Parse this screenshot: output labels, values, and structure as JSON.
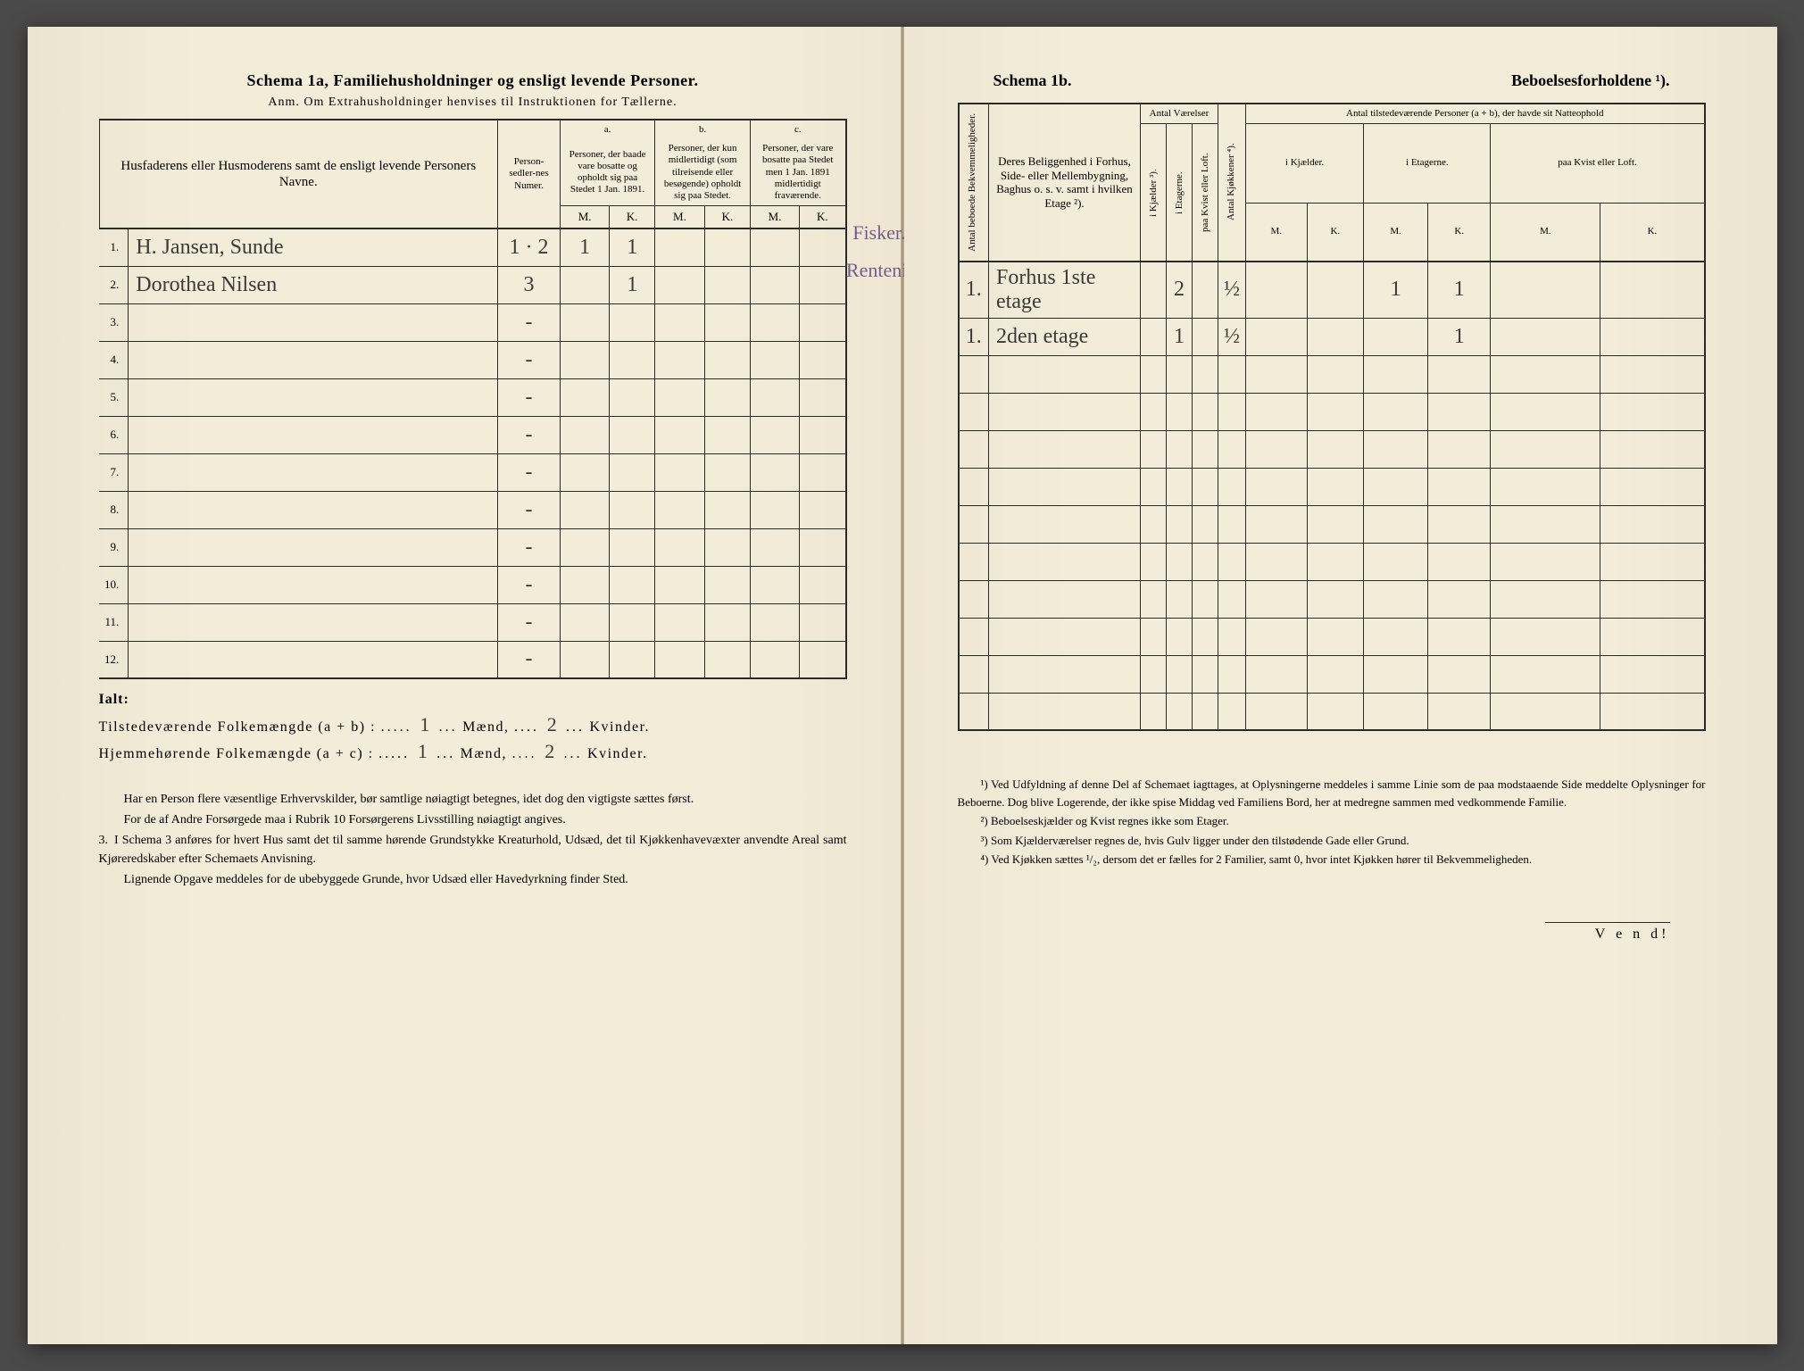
{
  "left": {
    "title": "Schema 1a,   Familiehusholdninger og ensligt levende Personer.",
    "anm": "Anm.  Om Extrahusholdninger henvises til Instruktionen for Tællerne.",
    "col_name": "Husfaderens eller Husmoderens samt de ensligt levende Personers Navne.",
    "col_numer": "Person-sedler-nes Numer.",
    "col_a": "a.",
    "col_a_text": "Personer, der baade vare bosatte og opholdt sig paa Stedet 1 Jan. 1891.",
    "col_b": "b.",
    "col_b_text": "Personer, der kun midlertidigt (som tilreisende eller besøgende) opholdt sig paa Stedet.",
    "col_c": "c.",
    "col_c_text": "Personer, der vare bosatte paa Stedet men 1 Jan. 1891 midlertidigt fraværende.",
    "M": "M.",
    "K": "K.",
    "rows": [
      {
        "n": "1.",
        "name": "H. Jansen, Sunde",
        "numer": "1 · 2",
        "aM": "1",
        "aK": "1",
        "note": "Fisker."
      },
      {
        "n": "2.",
        "name": "Dorothea Nilsen",
        "numer": "3",
        "aM": "",
        "aK": "1",
        "note": "Rentenist."
      },
      {
        "n": "3."
      },
      {
        "n": "4."
      },
      {
        "n": "5."
      },
      {
        "n": "6."
      },
      {
        "n": "7."
      },
      {
        "n": "8."
      },
      {
        "n": "9."
      },
      {
        "n": "10."
      },
      {
        "n": "11."
      },
      {
        "n": "12."
      }
    ],
    "ialt": "Ialt:",
    "tot1_label": "Tilstedeværende Folkemængde (a + b) :",
    "tot1_m": "1",
    "tot1_k": "2",
    "tot2_label": "Hjemmehørende Folkemængde (a + c) :",
    "tot2_m": "1",
    "tot2_k": "2",
    "maend": "Mænd,",
    "kvinder": "Kvinder.",
    "foot1": "Har en Person flere væsentlige Erhvervskilder, bør samtlige nøiagtigt betegnes, idet dog den vigtigste sættes først.",
    "foot2": "For de af Andre Forsørgede maa i Rubrik 10 Forsørgerens Livsstilling nøiagtigt angives.",
    "foot3_num": "3.",
    "foot3": "I Schema 3 anføres for hvert Hus samt det til samme hørende Grundstykke Kreaturhold, Udsæd, det til Kjøkkenhavevæxter anvendte Areal samt Kjøreredskaber efter Schemaets Anvisning.",
    "foot4": "Lignende Opgave meddeles for de ubebyggede Grunde, hvor Udsæd eller Havedyrkning finder Sted."
  },
  "right": {
    "title_l": "Schema 1b.",
    "title_r": "Beboelsesforholdene ¹).",
    "col_antal_bek": "Antal beboede Bekvemmeligheder.",
    "col_belig": "Deres Beliggenhed i Forhus, Side- eller Mellembygning, Baghus o. s. v. samt i hvilken Etage ²).",
    "col_vaer": "Antal Værelser",
    "col_kj": "i Kjælder ³).",
    "col_et": "i Etagerne.",
    "col_kvist": "paa Kvist eller Loft.",
    "col_kjok": "Antal Kjøkkener ⁴).",
    "col_pers": "Antal tilstedeværende Personer (a + b), der havde sit Natteophold",
    "col_ikj": "i Kjælder.",
    "col_iet": "i Etagerne.",
    "col_paakv": "paa Kvist eller Loft.",
    "M": "M.",
    "K": "K.",
    "rows": [
      {
        "bek": "1.",
        "belig": "Forhus 1ste etage",
        "et": "2",
        "kjok": "½",
        "ietM": "1",
        "ietK": "1"
      },
      {
        "bek": "1.",
        "belig": "2den etage",
        "et": "1",
        "kjok": "½",
        "ietM": "",
        "ietK": "1"
      },
      {},
      {},
      {},
      {},
      {},
      {},
      {},
      {},
      {},
      {}
    ],
    "fn1": "¹) Ved Udfyldning af denne Del af Schemaet iagttages, at Oplysningerne meddeles i samme Linie som de paa modstaaende Side meddelte Oplysninger for Beboerne. Dog blive Logerende, der ikke spise Middag ved Familiens Bord, her at medregne sammen med vedkommende Familie.",
    "fn2": "²) Beboelseskjælder og Kvist regnes ikke som Etager.",
    "fn3": "³) Som Kjælderværelser regnes de, hvis Gulv ligger under den tilstødende Gade eller Grund.",
    "fn4": "⁴) Ved Kjøkken sættes ¹/₂, dersom det er fælles for 2 Familier, samt 0, hvor intet Kjøkken hører til Bekvemmeligheden.",
    "vend": "V e n d!"
  }
}
